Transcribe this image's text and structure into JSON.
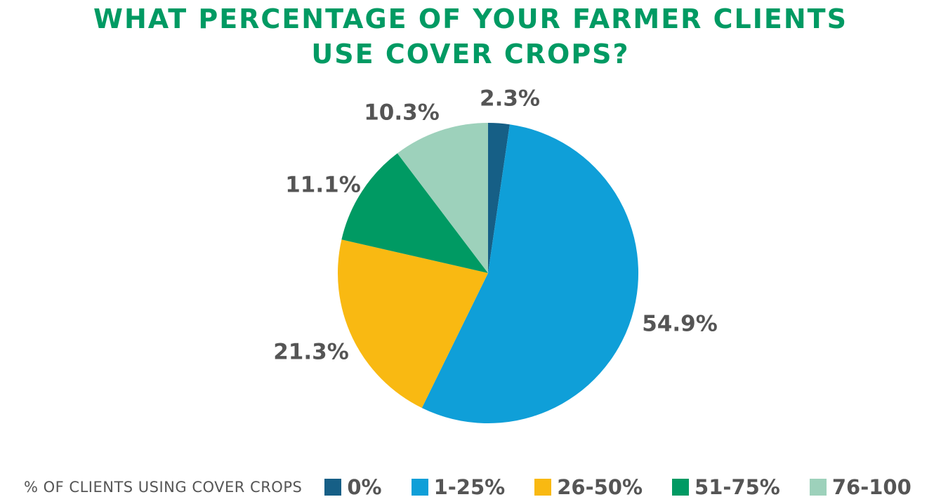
{
  "chart_data": {
    "type": "pie",
    "title": [
      "WHAT PERCENTAGE OF YOUR FARMER CLIENTS",
      "USE COVER CROPS?"
    ],
    "legend_title": "% OF CLIENTS USING COVER CROPS",
    "legend_position": "bottom",
    "categories": [
      "0%",
      "1-25%",
      "26-50%",
      "51-75%",
      "76-100"
    ],
    "values": [
      2.3,
      54.9,
      21.3,
      11.1,
      10.3
    ],
    "labels": [
      "2.3%",
      "54.9%",
      "21.3%",
      "11.1%",
      "10.3%"
    ],
    "colors": [
      "#165f86",
      "#0f9fd8",
      "#f9b912",
      "#009a63",
      "#9dd1bb"
    ],
    "start_angle": "top",
    "direction": "clockwise"
  }
}
